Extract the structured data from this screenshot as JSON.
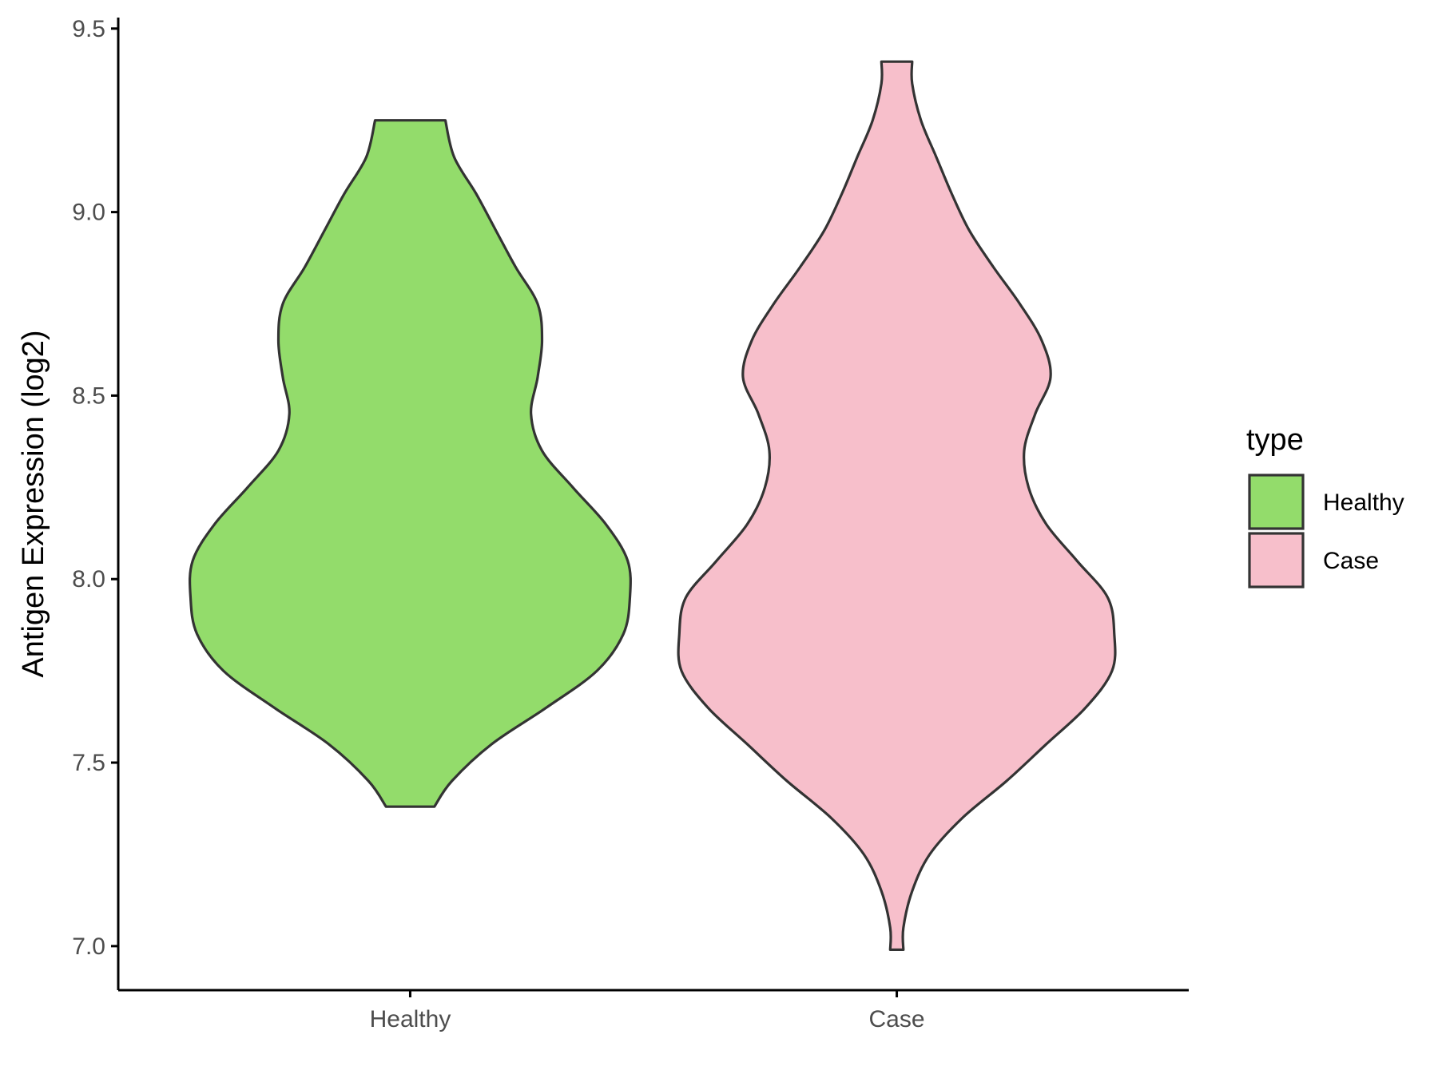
{
  "chart_data": {
    "type": "violin",
    "ylabel": "Antigen Expression (log2)",
    "xlabel": "",
    "ylim": [
      6.88,
      9.53
    ],
    "yticks": [
      7.0,
      7.5,
      8.0,
      8.5,
      9.0,
      9.5
    ],
    "ytick_labels": [
      "7.0",
      "7.5",
      "8.0",
      "8.5",
      "9.0",
      "9.5"
    ],
    "categories": [
      "Healthy",
      "Case"
    ],
    "grid": false,
    "legend": {
      "title": "type",
      "position": "right",
      "entries": [
        "Healthy",
        "Case"
      ]
    },
    "series": [
      {
        "name": "Healthy",
        "color": "#93DC6B",
        "min": 7.38,
        "max": 9.25,
        "density": [
          [
            7.38,
            0.11
          ],
          [
            7.45,
            0.19
          ],
          [
            7.55,
            0.37
          ],
          [
            7.65,
            0.62
          ],
          [
            7.75,
            0.85
          ],
          [
            7.85,
            0.97
          ],
          [
            7.95,
            1.0
          ],
          [
            8.05,
            0.99
          ],
          [
            8.15,
            0.89
          ],
          [
            8.25,
            0.74
          ],
          [
            8.35,
            0.6
          ],
          [
            8.45,
            0.55
          ],
          [
            8.55,
            0.58
          ],
          [
            8.65,
            0.6
          ],
          [
            8.75,
            0.58
          ],
          [
            8.85,
            0.48
          ],
          [
            8.95,
            0.39
          ],
          [
            9.05,
            0.3
          ],
          [
            9.15,
            0.2
          ],
          [
            9.25,
            0.16
          ]
        ]
      },
      {
        "name": "Case",
        "color": "#F7BFCB",
        "min": 6.99,
        "max": 9.41,
        "density": [
          [
            6.99,
            0.03
          ],
          [
            7.05,
            0.03
          ],
          [
            7.15,
            0.07
          ],
          [
            7.25,
            0.15
          ],
          [
            7.35,
            0.3
          ],
          [
            7.45,
            0.5
          ],
          [
            7.55,
            0.68
          ],
          [
            7.65,
            0.86
          ],
          [
            7.75,
            0.98
          ],
          [
            7.85,
            0.99
          ],
          [
            7.95,
            0.96
          ],
          [
            8.05,
            0.82
          ],
          [
            8.15,
            0.68
          ],
          [
            8.25,
            0.6
          ],
          [
            8.35,
            0.58
          ],
          [
            8.45,
            0.63
          ],
          [
            8.55,
            0.7
          ],
          [
            8.65,
            0.66
          ],
          [
            8.75,
            0.56
          ],
          [
            8.85,
            0.44
          ],
          [
            8.95,
            0.33
          ],
          [
            9.05,
            0.25
          ],
          [
            9.15,
            0.18
          ],
          [
            9.25,
            0.11
          ],
          [
            9.35,
            0.07
          ],
          [
            9.41,
            0.07
          ]
        ]
      }
    ]
  }
}
